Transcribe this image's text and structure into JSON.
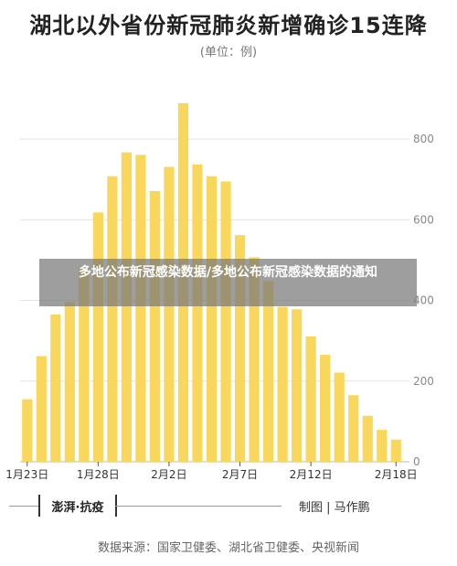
{
  "chart_data": {
    "type": "bar",
    "title": "湖北以外省份新冠肺炎新增确诊15连降",
    "subtitle": "(单位：例)",
    "values": [
      155,
      262,
      365,
      396,
      483,
      618,
      708,
      767,
      761,
      671,
      731,
      889,
      737,
      708,
      695,
      562,
      507,
      448,
      384,
      378,
      311,
      265,
      221,
      165,
      114,
      79,
      55
    ],
    "x_tick_labels": [
      "1月23日",
      "1月28日",
      "2月2日",
      "2月7日",
      "2月12日",
      "2月18日"
    ],
    "x_tick_index": [
      0,
      5,
      10,
      15,
      20,
      26
    ],
    "y_ticks": [
      0,
      200,
      400,
      600,
      800
    ],
    "ylim": [
      0,
      900
    ],
    "bar_color": "#f9d65c",
    "y_axis_side": "right",
    "grid": true
  },
  "overlay": {
    "text": "多地公布新冠感染数据/多地公布新冠感染数据的通知"
  },
  "footer": {
    "logo": "澎湃·抗疫",
    "credit": "制图 | 马作鹏",
    "source": "数据来源：国家卫健委、湖北省卫健委、央视新闻"
  }
}
